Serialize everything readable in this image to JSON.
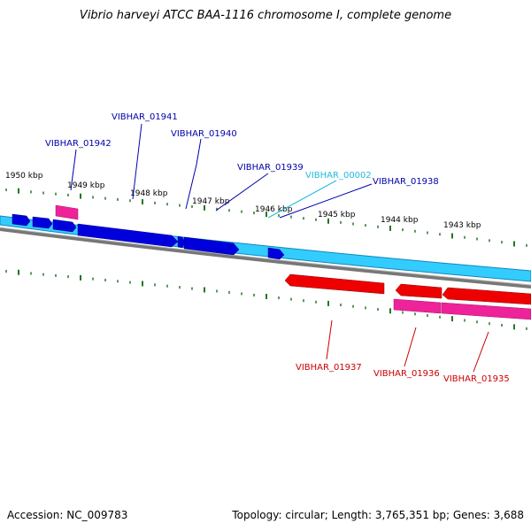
{
  "title": "Vibrio harveyi ATCC BAA-1116 chromosome I, complete genome",
  "footer": {
    "accession": "Accession: NC_009783",
    "summary": "Topology: circular; Length: 3,765,351 bp; Genes: 3,688"
  },
  "colors": {
    "forward_gene": "#0000dd",
    "forward_track": "#33ccff",
    "reverse_gene": "#ee0000",
    "reverse_track": "#ee2299",
    "backbone": "#888888",
    "tick": "#227722",
    "label_forward": "#0000aa",
    "label_highlight": "#22bbdd",
    "label_reverse": "#cc0000"
  },
  "scale_labels": [
    "1950 kbp",
    "1949 kbp",
    "1948 kbp",
    "1947 kbp",
    "1946 kbp",
    "1945 kbp",
    "1944 kbp",
    "1943 kbp"
  ],
  "gene_labels": [
    {
      "text": "VIBHAR_01941",
      "strand": "forward"
    },
    {
      "text": "VIBHAR_01942",
      "strand": "forward"
    },
    {
      "text": "VIBHAR_01940",
      "strand": "forward"
    },
    {
      "text": "VIBHAR_01939",
      "strand": "forward"
    },
    {
      "text": "VIBHAR_00002",
      "strand": "highlight"
    },
    {
      "text": "VIBHAR_01938",
      "strand": "forward"
    },
    {
      "text": "VIBHAR_01937",
      "strand": "reverse"
    },
    {
      "text": "VIBHAR_01936",
      "strand": "reverse"
    },
    {
      "text": "VIBHAR_01935",
      "strand": "reverse"
    }
  ]
}
